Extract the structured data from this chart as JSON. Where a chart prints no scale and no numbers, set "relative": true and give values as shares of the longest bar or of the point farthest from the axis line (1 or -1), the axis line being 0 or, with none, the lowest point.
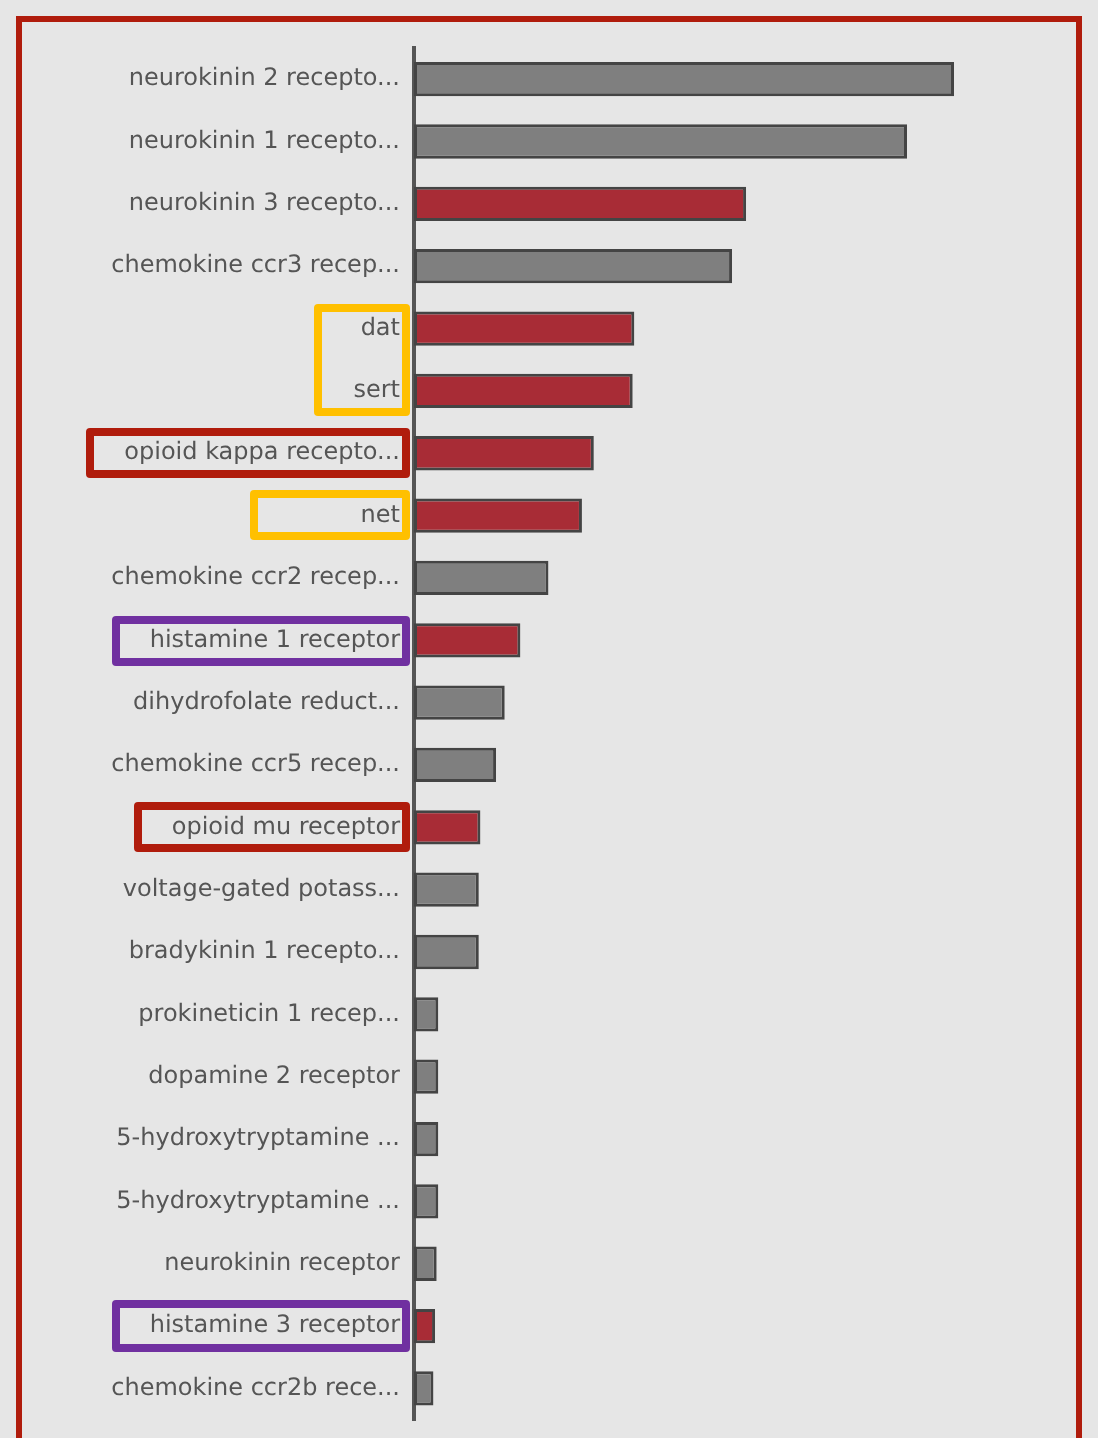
{
  "chart_data": {
    "type": "bar",
    "orientation": "horizontal",
    "relative": true,
    "categories": [
      "neurokinin 2 recepto...",
      "neurokinin 1 recepto...",
      "neurokinin 3 recepto...",
      "chemokine ccr3 recep...",
      "dat",
      "sert",
      "opioid kappa recepto...",
      "net",
      "chemokine ccr2 recep...",
      "histamine 1 receptor",
      "dihydrofolate reduct...",
      "chemokine ccr5 recep...",
      "opioid mu receptor",
      "voltage-gated potass...",
      "bradykinin 1 recepto...",
      "prokineticin 1 recep...",
      "dopamine 2 receptor",
      "5-hydroxytryptamine ...",
      "5-hydroxytryptamine ...",
      "neurokinin receptor",
      "histamine 3 receptor",
      "chemokine ccr2b rece..."
    ],
    "values": [
      1,
      0.913,
      0.615,
      0.589,
      0.408,
      0.405,
      0.333,
      0.311,
      0.249,
      0.197,
      0.168,
      0.152,
      0.123,
      0.12,
      0.12,
      0.045,
      0.045,
      0.045,
      0.045,
      0.042,
      0.039,
      0.036
    ],
    "colors": [
      "#7f7f7f",
      "#7f7f7f",
      "#a82c36",
      "#7f7f7f",
      "#a82c36",
      "#a82c36",
      "#a82c36",
      "#a82c36",
      "#7f7f7f",
      "#a82c36",
      "#7f7f7f",
      "#7f7f7f",
      "#a82c36",
      "#7f7f7f",
      "#7f7f7f",
      "#7f7f7f",
      "#7f7f7f",
      "#7f7f7f",
      "#7f7f7f",
      "#7f7f7f",
      "#a82c36",
      "#7f7f7f"
    ],
    "legend": false
  }
}
